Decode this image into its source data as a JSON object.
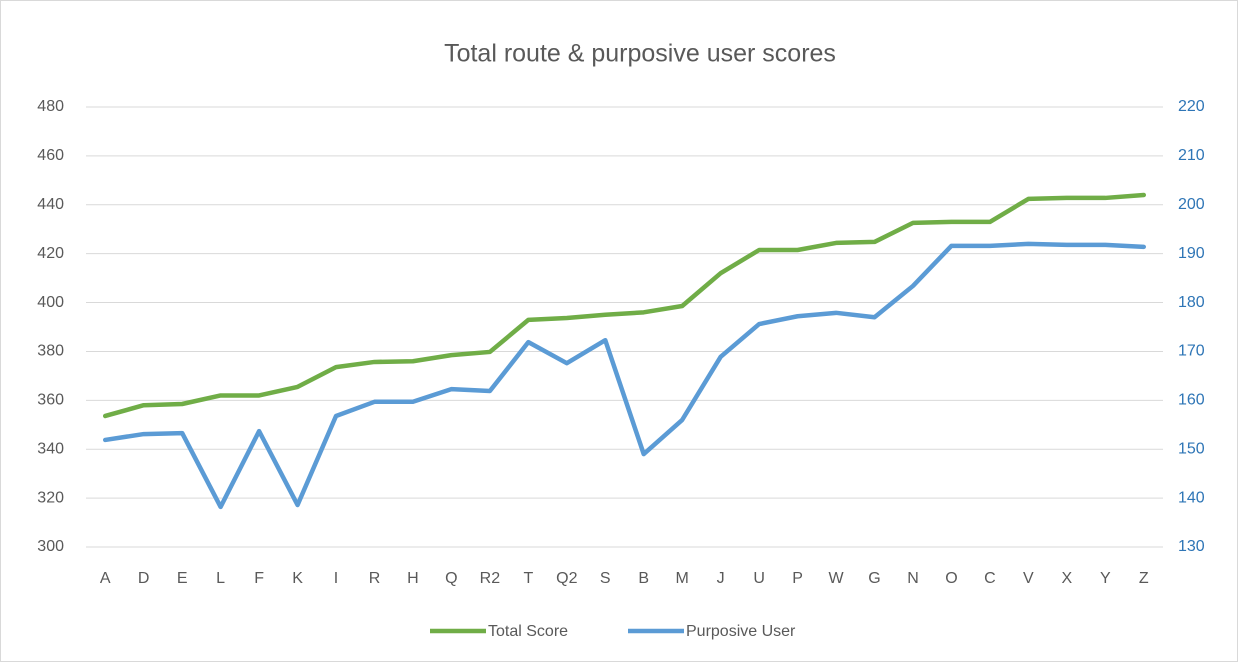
{
  "chart_data": {
    "type": "line",
    "title": "Total route & purposive user scores",
    "categories": [
      "A",
      "D",
      "E",
      "L",
      "F",
      "K",
      "I",
      "R",
      "H",
      "Q",
      "R2",
      "T",
      "Q2",
      "S",
      "B",
      "M",
      "J",
      "U",
      "P",
      "W",
      "G",
      "N",
      "O",
      "C",
      "V",
      "X",
      "Y",
      "Z"
    ],
    "series": [
      {
        "name": "Total Score",
        "color": "#70ad47",
        "values": [
          353.6,
          358,
          358.5,
          362,
          362,
          365.5,
          373.6,
          375.7,
          376,
          378.5,
          379.8,
          392.9,
          393.7,
          395,
          396,
          398.6,
          412,
          421.5,
          421.5,
          424.4,
          424.8,
          432.6,
          433,
          433,
          442.4,
          442.8,
          442.8,
          444
        ]
      },
      {
        "name": "Purposive User",
        "color": "#5b9bd5",
        "axis": "y2",
        "values": [
          151.9,
          153.1,
          153.3,
          138.2,
          153.7,
          138.6,
          156.8,
          159.7,
          159.7,
          162.3,
          161.9,
          171.9,
          167.6,
          172.3,
          149,
          156,
          168.9,
          175.6,
          177.2,
          177.9,
          177,
          183.4,
          191.6,
          191.6,
          192,
          191.8,
          191.8,
          191.4
        ]
      }
    ],
    "ylim": [
      300,
      480
    ],
    "yticks": [
      300,
      320,
      340,
      360,
      380,
      400,
      420,
      440,
      460,
      480
    ],
    "y2lim": [
      130,
      220
    ],
    "y2ticks": [
      130,
      140,
      150,
      160,
      170,
      180,
      190,
      200,
      210,
      220
    ],
    "grid": true,
    "legend": "bottom"
  }
}
